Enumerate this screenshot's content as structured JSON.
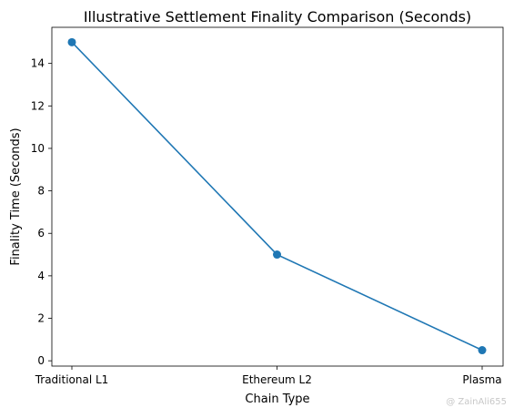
{
  "chart_data": {
    "type": "line",
    "title": "Illustrative Settlement Finality Comparison (Seconds)",
    "xlabel": "Chain Type",
    "ylabel": "Finality Time (Seconds)",
    "categories": [
      "Traditional L1",
      "Ethereum L2",
      "Plasma"
    ],
    "series": [
      {
        "values": [
          15,
          5,
          0.5
        ],
        "color": "#1f77b4",
        "marker": "circle"
      }
    ],
    "ylim": [
      -0.25,
      15.7
    ],
    "yticks": [
      0,
      2,
      4,
      6,
      8,
      10,
      12,
      14
    ],
    "grid": false,
    "legend": "none"
  },
  "watermark": "@ ZainAli655"
}
